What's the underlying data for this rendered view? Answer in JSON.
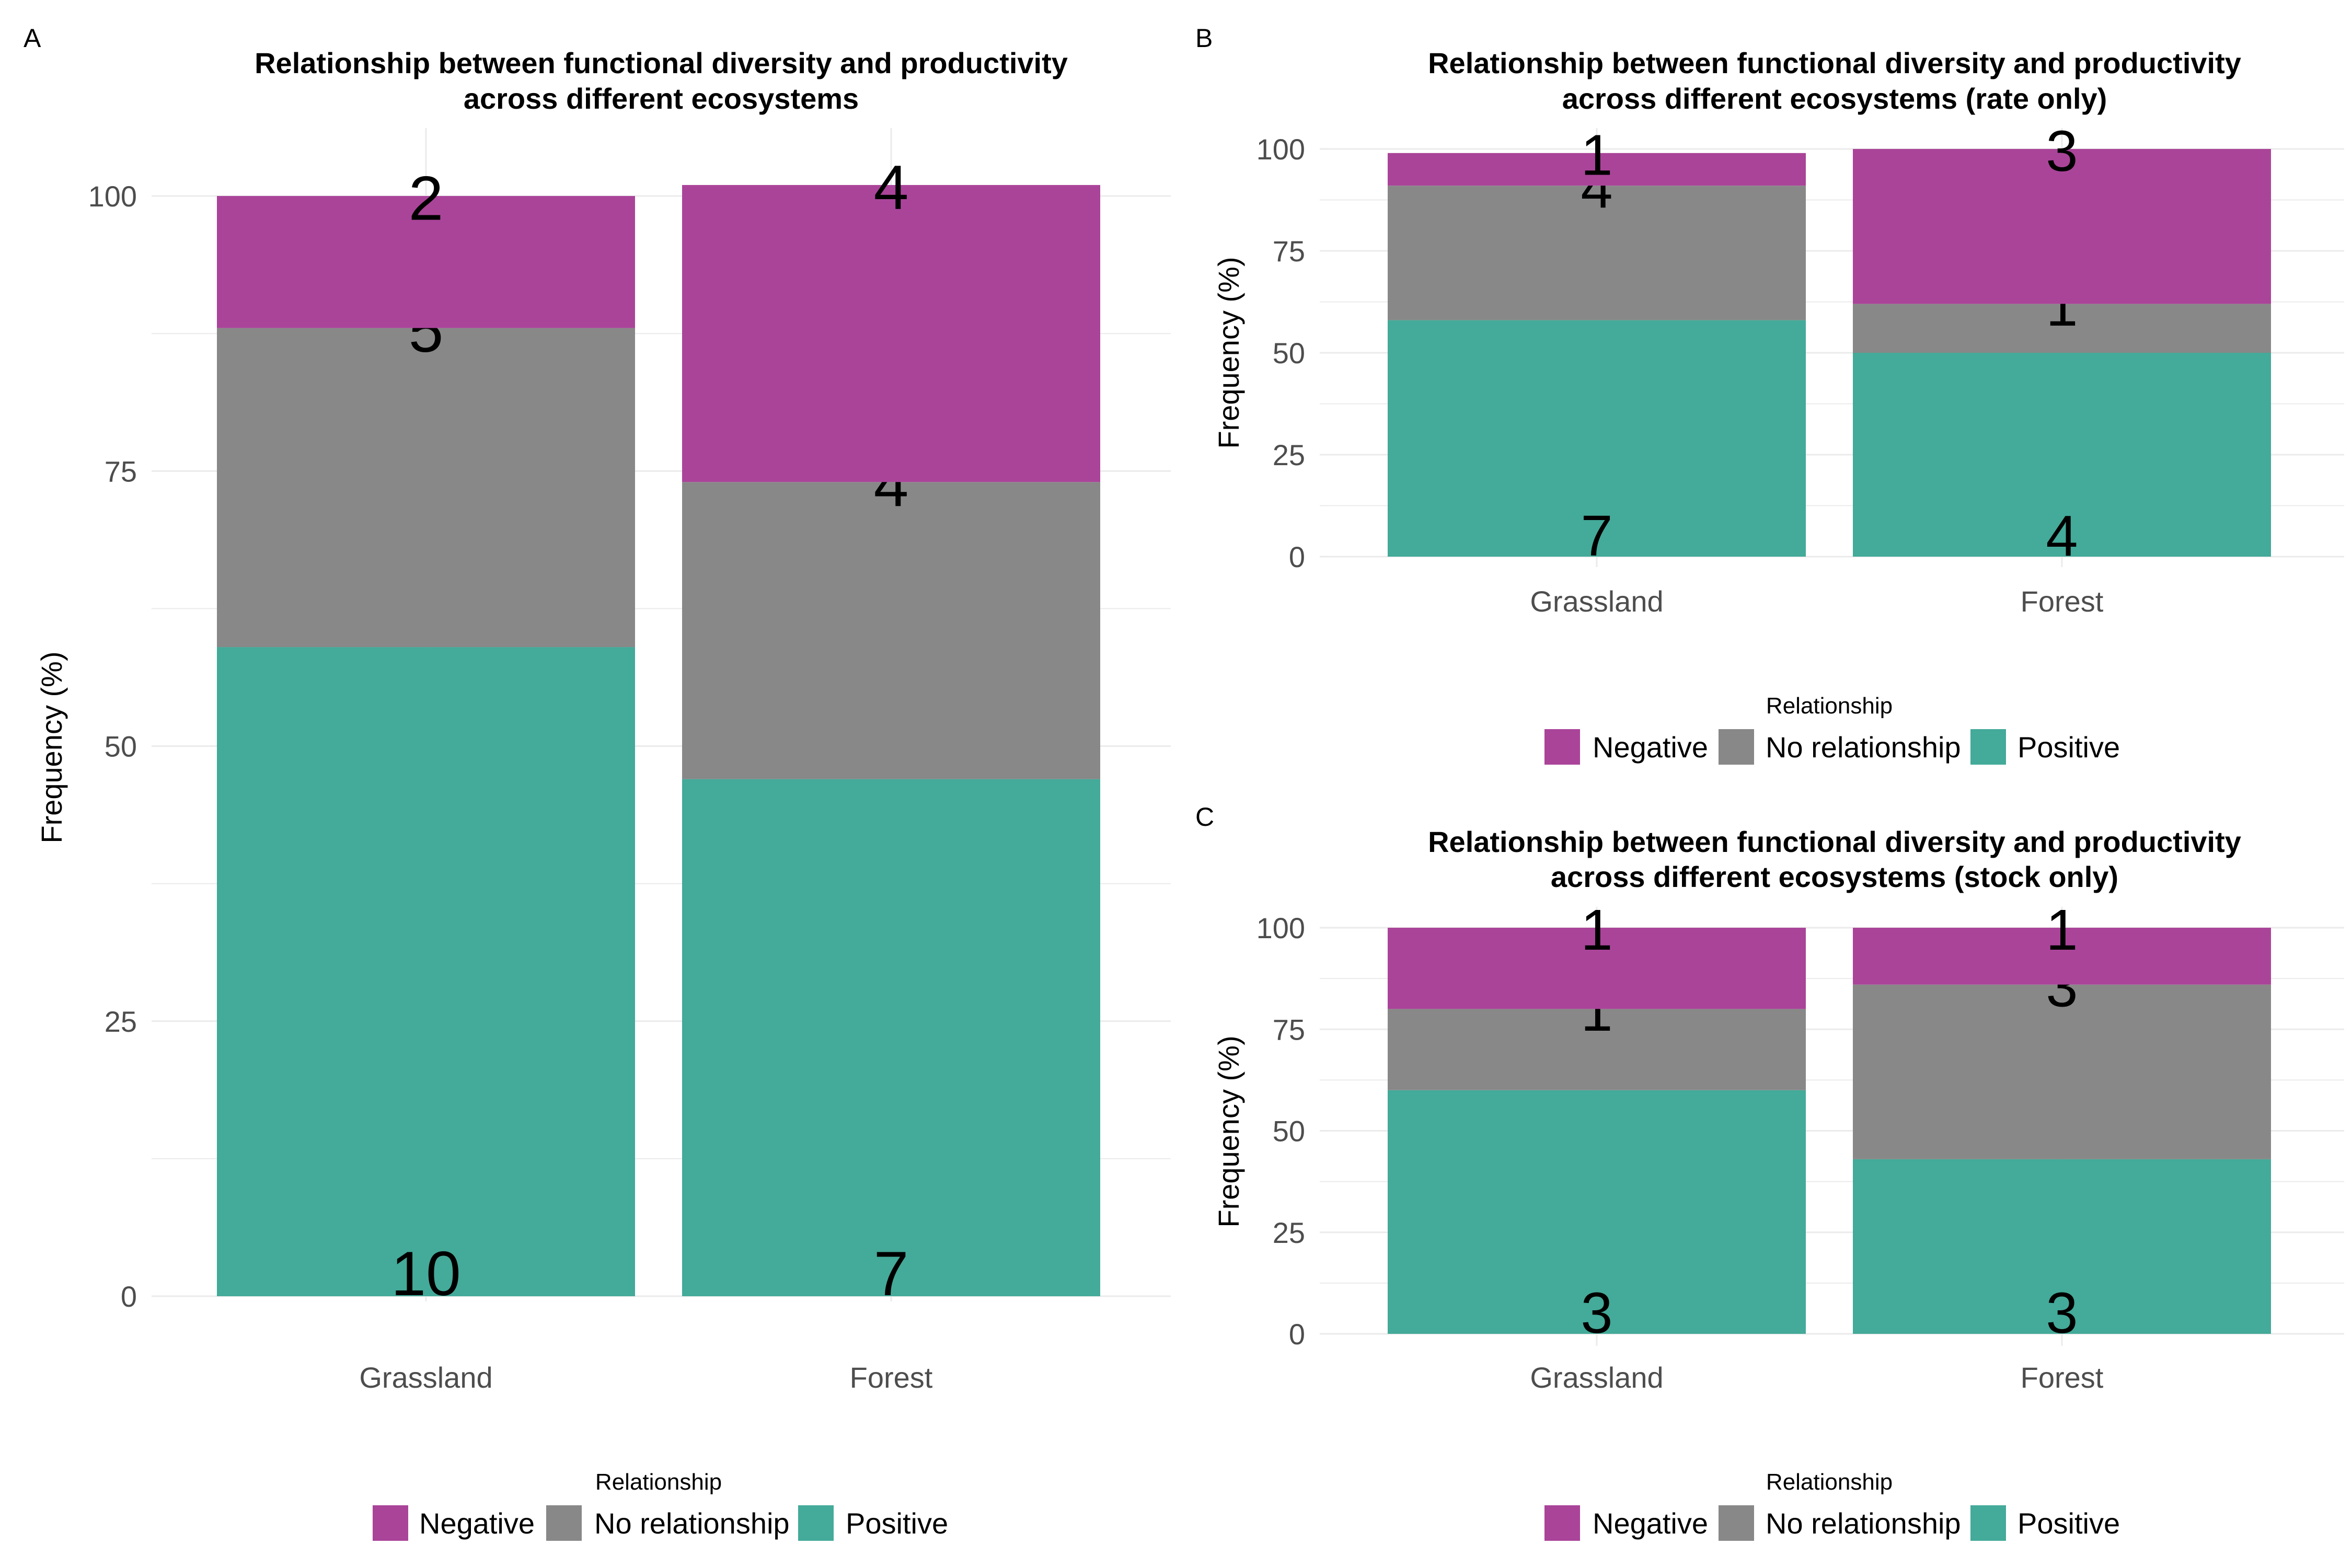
{
  "chart_data": [
    {
      "panel_letter": "A",
      "type": "bar",
      "stacked": true,
      "title": [
        "Relationship between functional diversity and productivity",
        "across different ecosystems"
      ],
      "xlabel": "",
      "ylabel": "Frequency (%)",
      "ylim": [
        0,
        100
      ],
      "yticks": [
        "0",
        "25",
        "50",
        "75",
        "100"
      ],
      "categories": [
        "Grassland",
        "Forest"
      ],
      "series": [
        {
          "name": "Positive",
          "values": [
            59,
            47
          ],
          "counts": [
            "10",
            "7"
          ]
        },
        {
          "name": "No relationship",
          "values": [
            29,
            27
          ],
          "counts": [
            "5",
            "4"
          ]
        },
        {
          "name": "Negative",
          "values": [
            12,
            27
          ],
          "counts": [
            "2",
            "4"
          ]
        }
      ],
      "legend": {
        "title": "Relationship",
        "position": "bottom",
        "items": [
          "Negative",
          "No relationship",
          "Positive"
        ]
      },
      "grid": true
    },
    {
      "panel_letter": "B",
      "type": "bar",
      "stacked": true,
      "title": [
        "Relationship between functional diversity and productivity",
        "across different ecosystems (rate only)"
      ],
      "xlabel": "",
      "ylabel": "Frequency (%)",
      "ylim": [
        0,
        100
      ],
      "yticks": [
        "0",
        "25",
        "50",
        "75",
        "100"
      ],
      "categories": [
        "Grassland",
        "Forest"
      ],
      "series": [
        {
          "name": "Positive",
          "values": [
            58,
            50
          ],
          "counts": [
            "7",
            "4"
          ]
        },
        {
          "name": "No relationship",
          "values": [
            33,
            12
          ],
          "counts": [
            "4",
            "1"
          ]
        },
        {
          "name": "Negative",
          "values": [
            8,
            38
          ],
          "counts": [
            "1",
            "3"
          ]
        }
      ],
      "legend": {
        "title": "Relationship",
        "position": "bottom",
        "items": [
          "Negative",
          "No relationship",
          "Positive"
        ]
      },
      "grid": true
    },
    {
      "panel_letter": "C",
      "type": "bar",
      "stacked": true,
      "title": [
        "Relationship between functional diversity and productivity",
        "across different ecosystems (stock only)"
      ],
      "xlabel": "",
      "ylabel": "Frequency (%)",
      "ylim": [
        0,
        100
      ],
      "yticks": [
        "0",
        "25",
        "50",
        "75",
        "100"
      ],
      "categories": [
        "Grassland",
        "Forest"
      ],
      "series": [
        {
          "name": "Positive",
          "values": [
            60,
            43
          ],
          "counts": [
            "3",
            "3"
          ]
        },
        {
          "name": "No relationship",
          "values": [
            20,
            43
          ],
          "counts": [
            "1",
            "3"
          ]
        },
        {
          "name": "Negative",
          "values": [
            20,
            14
          ],
          "counts": [
            "1",
            "1"
          ]
        }
      ],
      "legend": {
        "title": "Relationship",
        "position": "bottom",
        "items": [
          "Negative",
          "No relationship",
          "Positive"
        ]
      },
      "grid": true
    }
  ],
  "colors": {
    "Negative": "#AA4499",
    "No relationship": "#888888",
    "Positive": "#44AA99",
    "grid": "#EBEBEB",
    "text": "#000000",
    "tick_text": "#4D4D4D"
  }
}
